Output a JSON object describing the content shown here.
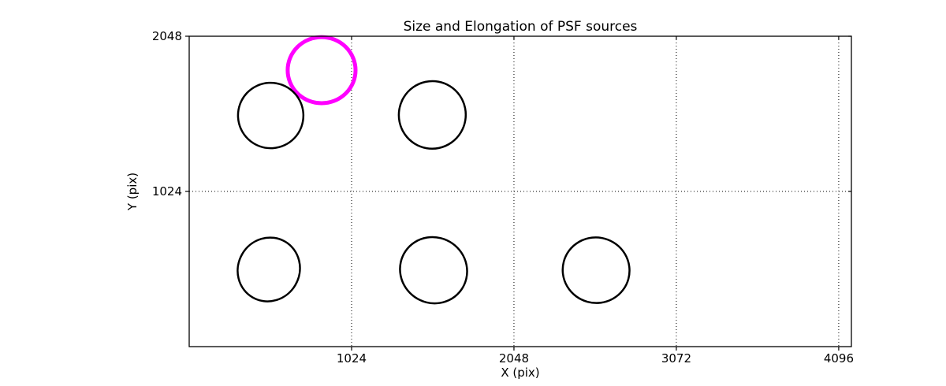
{
  "figure": {
    "background": "#ffffff",
    "frame_color": "#000000"
  },
  "chart_data": {
    "type": "scatter",
    "title": "Size and Elongation of PSF sources",
    "xlabel": "X (pix)",
    "ylabel": "Y (pix)",
    "xlim": [
      0,
      4176
    ],
    "ylim": [
      0,
      2048
    ],
    "xticks": [
      1024,
      2048,
      3072,
      4096
    ],
    "yticks": [
      1024,
      2048
    ],
    "grid": {
      "visible": true,
      "style": "dotted",
      "color": "#000000"
    },
    "legend": "none",
    "series_note": "Each point is a PSF source drawn as an ellipse whose size/elongation encode the PSF shape; one source is highlighted in magenta.",
    "highlight_color": "#ff00ff",
    "sources": [
      {
        "x": 835,
        "y": 1824,
        "rx": 214,
        "ry": 218,
        "angle": 0,
        "color": "#ff00ff",
        "linewidth": 5,
        "highlighted": true
      },
      {
        "x": 514,
        "y": 1525,
        "rx": 206,
        "ry": 216,
        "angle": -25,
        "color": "#000000",
        "linewidth": 2.5,
        "highlighted": false
      },
      {
        "x": 1533,
        "y": 1529,
        "rx": 211,
        "ry": 223,
        "angle": 10,
        "color": "#000000",
        "linewidth": 2.5,
        "highlighted": false
      },
      {
        "x": 502,
        "y": 509,
        "rx": 194,
        "ry": 213,
        "angle": 30,
        "color": "#000000",
        "linewidth": 2.5,
        "highlighted": false
      },
      {
        "x": 1541,
        "y": 504,
        "rx": 214,
        "ry": 216,
        "angle": 35,
        "color": "#000000",
        "linewidth": 2.5,
        "highlighted": false
      },
      {
        "x": 2566,
        "y": 504,
        "rx": 211,
        "ry": 216,
        "angle": 15,
        "color": "#000000",
        "linewidth": 2.5,
        "highlighted": false
      }
    ]
  }
}
